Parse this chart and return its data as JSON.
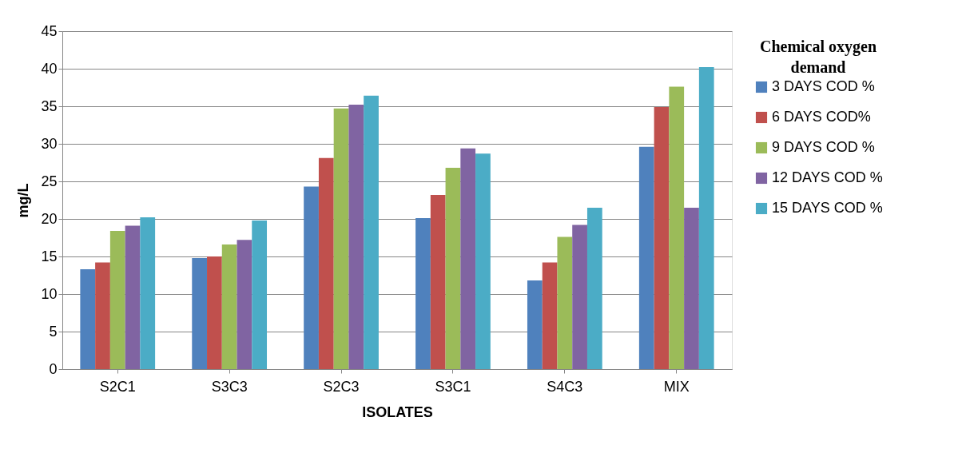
{
  "chart_data": {
    "type": "bar",
    "xlabel": "ISOLATES",
    "ylabel": "mg/L",
    "legend_title": "Chemical oxygen demand",
    "categories": [
      "S2C1",
      "S3C3",
      "S2C3",
      "S3C1",
      "S4C3",
      "MIX"
    ],
    "series": [
      {
        "name": "3 DAYS COD %",
        "color": "#4f81bd",
        "values": [
          13.3,
          14.8,
          24.3,
          20.1,
          11.8,
          29.6
        ]
      },
      {
        "name": "6 DAYS COD%",
        "color": "#c0504d",
        "values": [
          14.2,
          15.0,
          28.1,
          23.2,
          14.2,
          34.9
        ]
      },
      {
        "name": "9 DAYS COD %",
        "color": "#9bbb59",
        "values": [
          18.4,
          16.6,
          34.7,
          26.8,
          17.6,
          37.6
        ]
      },
      {
        "name": "12 DAYS COD %",
        "color": "#8064a2",
        "values": [
          19.1,
          17.2,
          35.2,
          29.4,
          19.2,
          21.5
        ]
      },
      {
        "name": "15 DAYS COD %",
        "color": "#4bacc6",
        "values": [
          20.2,
          19.8,
          36.4,
          28.7,
          21.5,
          40.2
        ]
      }
    ],
    "ylim": [
      0,
      45
    ],
    "yticks": [
      0,
      5,
      10,
      15,
      20,
      25,
      30,
      35,
      40,
      45
    ],
    "grid": "y",
    "legend": "right"
  }
}
